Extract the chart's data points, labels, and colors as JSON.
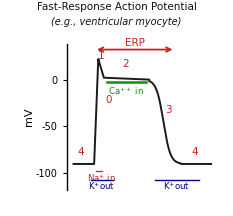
{
  "title1": "Fast-Response Action Potential",
  "title2": "(e.g., ventricular myocyte)",
  "erp_label": "ERP",
  "ylabel": "mV",
  "bg_color": "#ffffff",
  "line_color": "#1a1a1a",
  "label_color": "#cc2222",
  "erp_color": "#cc2222",
  "ca_line_color": "#009900",
  "ca_text_color": "#009900",
  "k_color": "#00008B",
  "na_color": "#cc2222",
  "yticks": [
    0,
    -50,
    -100
  ],
  "xlim": [
    -0.5,
    10.5
  ],
  "ylim": [
    -118,
    38
  ],
  "ap_resting": -90,
  "ap_peak": 22,
  "t_start": 1.5,
  "t_upstroke_end": 1.8,
  "t_phase1_end": 2.2,
  "t_plateau_end": 5.5,
  "t_repol_end": 7.8,
  "t_end": 10.0,
  "erp_x1": 1.5,
  "erp_x2": 7.4,
  "erp_y": 32,
  "ca_line_x1": 2.4,
  "ca_line_x2": 5.3,
  "ca_line_y": -3
}
